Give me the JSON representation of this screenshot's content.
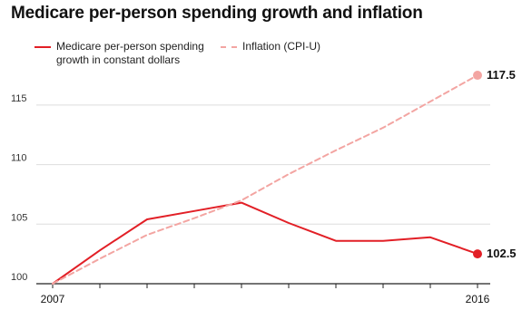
{
  "title": "Medicare per-person spending growth and inflation",
  "colors": {
    "medicare": "#e21f26",
    "inflation": "#f3a5a2",
    "grid": "#dddddd",
    "axis": "#222222"
  },
  "chart_data": {
    "type": "line",
    "title": "Medicare per-person spending growth and inflation",
    "xlabel": "",
    "ylabel": "",
    "xlim": [
      2007,
      2016
    ],
    "ylim": [
      100,
      119
    ],
    "x": [
      2007,
      2008,
      2009,
      2010,
      2011,
      2012,
      2013,
      2014,
      2015,
      2016
    ],
    "x_tick_labels": [
      {
        "x": 2007,
        "label": "2007"
      },
      {
        "x": 2016,
        "label": "2016"
      }
    ],
    "y_ticks": [
      100,
      105,
      110,
      115
    ],
    "y_tick_labels": [
      "100",
      "105",
      "110",
      "115"
    ],
    "grid": "horizontal",
    "legend_position": "top-left",
    "series": [
      {
        "name": "Medicare per-person spending growth in constant dollars",
        "legend_lines": [
          "Medicare per-person spending",
          "growth in constant dollars"
        ],
        "style": "solid",
        "color": "#e21f26",
        "values": [
          100,
          102.8,
          105.4,
          106.1,
          106.8,
          105.1,
          103.6,
          103.6,
          103.9,
          102.5
        ],
        "end_label": "102.5"
      },
      {
        "name": "Inflation (CPI-U)",
        "legend_lines": [
          "Inflation (CPI-U)"
        ],
        "style": "dashed",
        "color": "#f3a5a2",
        "values": [
          100,
          102.1,
          104.1,
          105.5,
          107.0,
          109.2,
          111.2,
          113.1,
          115.3,
          117.5
        ],
        "end_label": "117.5"
      }
    ]
  }
}
